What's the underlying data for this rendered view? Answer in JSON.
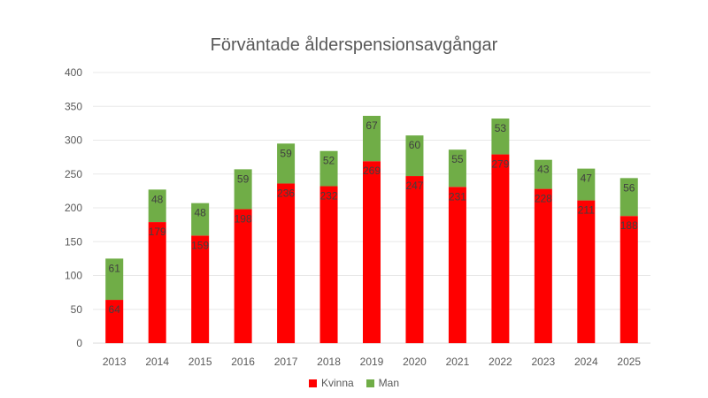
{
  "chart_data": {
    "type": "bar",
    "stacked": true,
    "title": "Förväntade ålderspensionsavgångar",
    "categories": [
      "2013",
      "2014",
      "2015",
      "2016",
      "2017",
      "2018",
      "2019",
      "2020",
      "2021",
      "2022",
      "2023",
      "2024",
      "2025"
    ],
    "series": [
      {
        "name": "Kvinna",
        "color": "#ff0000",
        "values": [
          64,
          179,
          159,
          198,
          236,
          232,
          269,
          247,
          231,
          279,
          228,
          211,
          188
        ]
      },
      {
        "name": "Man",
        "color": "#70ad47",
        "values": [
          61,
          48,
          48,
          59,
          59,
          52,
          67,
          60,
          55,
          53,
          43,
          47,
          56
        ]
      }
    ],
    "yticks": [
      "0",
      "50",
      "100",
      "150",
      "200",
      "250",
      "300",
      "350",
      "400"
    ],
    "ylim": [
      0,
      400
    ],
    "grid": true,
    "legend": "bottom",
    "data_labels": true
  }
}
